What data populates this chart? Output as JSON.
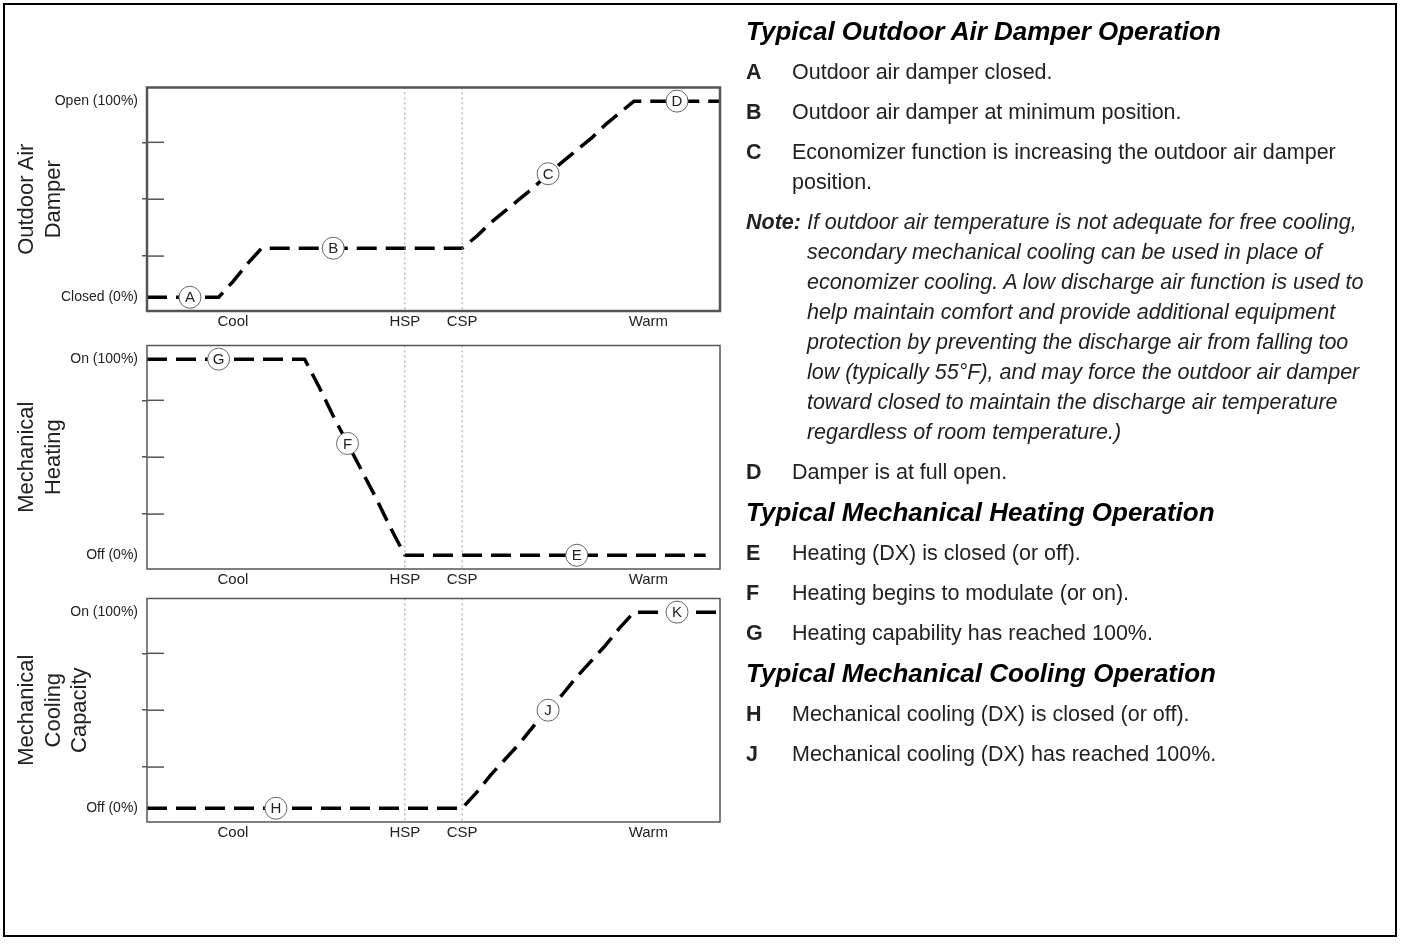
{
  "chart_data": [
    {
      "type": "line",
      "ylabel": "Outdoor Air Damper",
      "categories": [
        null,
        null,
        null,
        null,
        null,
        null,
        "Cool",
        null,
        null,
        null,
        null,
        null,
        null,
        null,
        null,
        null,
        null,
        null,
        "HSP",
        null,
        null,
        null,
        "CSP",
        null,
        null,
        null,
        null,
        null,
        null,
        null,
        null,
        null,
        null,
        null,
        null,
        "Warm",
        null,
        null,
        null,
        null,
        null
      ],
      "series": [
        {
          "color": "#000000",
          "values": [
            0,
            0,
            0,
            0,
            0,
            0,
            8,
            17,
            25,
            25,
            25,
            25,
            25,
            25,
            25,
            25,
            25,
            25,
            25,
            25,
            25,
            25,
            25,
            31,
            38,
            44,
            50,
            56,
            63,
            69,
            75,
            81,
            88,
            94,
            100,
            100,
            100,
            100,
            100,
            100,
            100
          ],
          "value_labels": [
            null,
            null,
            null,
            "A",
            null,
            null,
            null,
            null,
            null,
            null,
            null,
            null,
            null,
            "B",
            null,
            null,
            null,
            null,
            null,
            null,
            null,
            null,
            null,
            null,
            null,
            null,
            null,
            null,
            "C",
            null,
            null,
            null,
            null,
            null,
            null,
            null,
            null,
            "D",
            null,
            null,
            null
          ]
        }
      ],
      "ylim": [
        -7,
        107
      ],
      "yticks": [
        {
          "value": 0,
          "label": "Closed (0%)"
        },
        {
          "value": 21,
          "label": null
        },
        {
          "value": 50,
          "label": null
        },
        {
          "value": 79,
          "label": null
        },
        {
          "value": 100,
          "label": "Open (100%)"
        }
      ],
      "ref_lines": [
        {
          "axis": "x",
          "value": "HSP",
          "color": "#999999",
          "line_style": "dotted"
        },
        {
          "axis": "x",
          "value": "CSP",
          "color": "#999999",
          "line_style": "dotted"
        }
      ],
      "line_style": "dashed",
      "marker": "none",
      "legend": false,
      "grid": false
    },
    {
      "type": "line",
      "ylabel": "Mechanical Heating",
      "categories": [
        null,
        null,
        null,
        null,
        null,
        null,
        "Cool",
        null,
        null,
        null,
        null,
        null,
        null,
        null,
        null,
        null,
        null,
        null,
        "HSP",
        null,
        null,
        null,
        "CSP",
        null,
        null,
        null,
        null,
        null,
        null,
        null,
        null,
        null,
        null,
        null,
        null,
        "Warm",
        null,
        null,
        null,
        null,
        null
      ],
      "series": [
        {
          "color": "#000000",
          "values": [
            100,
            100,
            100,
            100,
            100,
            100,
            100,
            100,
            100,
            100,
            100,
            100,
            86,
            71,
            57,
            43,
            29,
            14,
            0,
            0,
            0,
            0,
            0,
            0,
            0,
            0,
            0,
            0,
            0,
            0,
            0,
            0,
            0,
            0,
            0,
            0,
            0,
            0,
            0,
            0,
            null
          ],
          "value_labels": [
            null,
            null,
            null,
            null,
            null,
            "G",
            null,
            null,
            null,
            null,
            null,
            null,
            null,
            null,
            "F",
            null,
            null,
            null,
            null,
            null,
            null,
            null,
            null,
            null,
            null,
            null,
            null,
            null,
            null,
            null,
            "E",
            null,
            null,
            null,
            null,
            null,
            null,
            null,
            null,
            null,
            null
          ]
        }
      ],
      "ylim": [
        -7,
        107
      ],
      "yticks": [
        {
          "value": 0,
          "label": "Off (0%)"
        },
        {
          "value": 21,
          "label": null
        },
        {
          "value": 50,
          "label": null
        },
        {
          "value": 79,
          "label": null
        },
        {
          "value": 100,
          "label": "On (100%)"
        }
      ],
      "ref_lines": [
        {
          "axis": "x",
          "value": "HSP",
          "color": "#999999",
          "line_style": "dotted"
        },
        {
          "axis": "x",
          "value": "CSP",
          "color": "#999999",
          "line_style": "dotted"
        }
      ],
      "line_style": "dashed",
      "marker": "none",
      "legend": false,
      "grid": false
    },
    {
      "type": "line",
      "ylabel": "Mechanical Cooling Capacity",
      "categories": [
        null,
        null,
        null,
        null,
        null,
        null,
        "Cool",
        null,
        null,
        null,
        null,
        null,
        null,
        null,
        null,
        null,
        null,
        null,
        "HSP",
        null,
        null,
        null,
        "CSP",
        null,
        null,
        null,
        null,
        null,
        null,
        null,
        null,
        null,
        null,
        null,
        null,
        "Warm",
        null,
        null,
        null,
        null,
        null
      ],
      "series": [
        {
          "color": "#000000",
          "values": [
            0,
            0,
            0,
            0,
            0,
            0,
            0,
            0,
            0,
            0,
            0,
            0,
            0,
            0,
            0,
            0,
            0,
            0,
            0,
            0,
            0,
            0,
            0,
            8,
            17,
            25,
            33,
            42,
            50,
            58,
            67,
            75,
            83,
            92,
            100,
            100,
            100,
            100,
            100,
            100,
            100
          ],
          "value_labels": [
            null,
            null,
            null,
            null,
            null,
            null,
            null,
            null,
            null,
            "H",
            null,
            null,
            null,
            null,
            null,
            null,
            null,
            null,
            null,
            null,
            null,
            null,
            null,
            null,
            null,
            null,
            null,
            null,
            "J",
            null,
            null,
            null,
            null,
            null,
            null,
            null,
            null,
            "K",
            null,
            null,
            null
          ]
        }
      ],
      "ylim": [
        -7,
        107
      ],
      "yticks": [
        {
          "value": 0,
          "label": "Off (0%)"
        },
        {
          "value": 21,
          "label": null
        },
        {
          "value": 50,
          "label": null
        },
        {
          "value": 79,
          "label": null
        },
        {
          "value": 100,
          "label": "On (100%)"
        }
      ],
      "ref_lines": [
        {
          "axis": "x",
          "value": "HSP",
          "color": "#999999",
          "line_style": "dotted"
        },
        {
          "axis": "x",
          "value": "CSP",
          "color": "#999999",
          "line_style": "dotted"
        }
      ],
      "line_style": "dashed",
      "marker": "none",
      "legend": false,
      "grid": false
    },
    {
      "type": "other",
      "title": "Typical Outdoor Air Damper Operation",
      "annotations": [
        "A Outdoor air damper closed.",
        "B Outdoor air damper at minimum position.",
        "C Economizer function is increasing the outdoor air damper position.",
        "Note: If outdoor air temperature is not adequate for free cooling, secondary mechanical cooling can be used in place of economizer cooling. A low discharge air function is used to help maintain comfort and provide additional equipment protection by preventing the discharge air from falling too low (typically 55°F), and may force the outdoor air damper toward closed to maintain the discharge air temperature regardless of room temperature.)",
        "D Damper is at full open."
      ]
    },
    {
      "type": "other",
      "title": "Typical Mechanical Heating Operation",
      "annotations": [
        "E Heating (DX) is closed (or off).",
        "F Heating begins to modulate (or on).",
        "G Heating capability has reached 100%."
      ]
    },
    {
      "type": "other",
      "title": "Typical Mechanical Cooling Operation",
      "annotations": [
        "H Mechanical cooling (DX) is closed (or off).",
        "J Mechanical cooling (DX) has reached 100%."
      ]
    }
  ]
}
